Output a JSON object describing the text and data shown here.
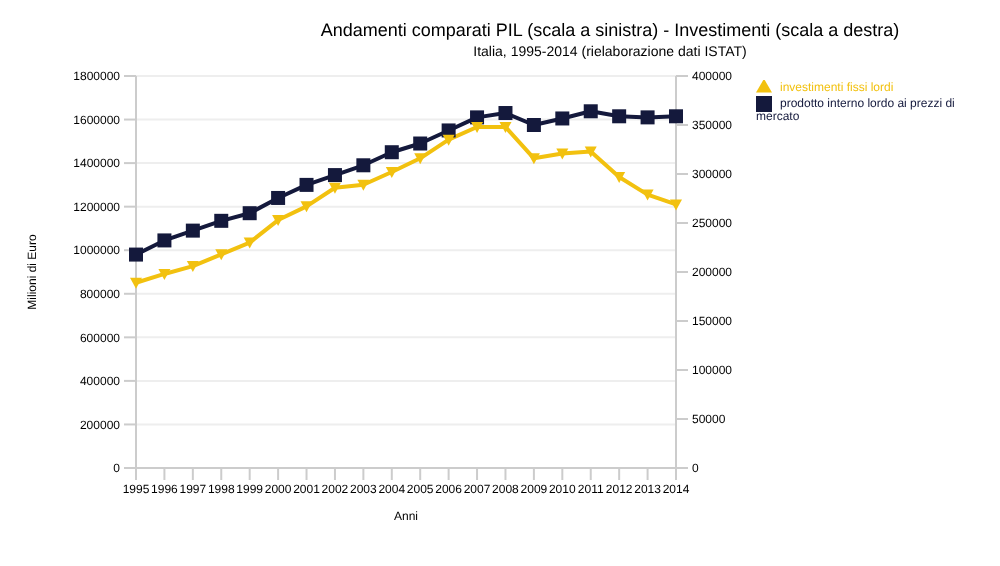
{
  "chart_data": {
    "type": "line",
    "title": "Andamenti comparati PIL (scala a sinistra) - Investimenti (scala a destra)",
    "subtitle": "Italia, 1995-2014 (rielaborazione dati ISTAT)",
    "xlabel": "Anni",
    "ylabel": "Milioni di Euro",
    "categories": [
      "1995",
      "1996",
      "1997",
      "1998",
      "1999",
      "2000",
      "2001",
      "2002",
      "2003",
      "2004",
      "2005",
      "2006",
      "2007",
      "2008",
      "2009",
      "2010",
      "2011",
      "2012",
      "2013",
      "2014"
    ],
    "series": [
      {
        "name": "prodotto interno lordo ai prezzi di mercato",
        "color": "#14193c",
        "marker": "square",
        "values": [
          980000,
          1045000,
          1090000,
          1135000,
          1170000,
          1240000,
          1300000,
          1345000,
          1390000,
          1450000,
          1490000,
          1550000,
          1610000,
          1630000,
          1575000,
          1605000,
          1638000,
          1615000,
          1610000,
          1615000
        ]
      },
      {
        "name": "investimenti fissi lordi",
        "color": "#f2c10f",
        "marker": "triangle",
        "axis": "y2",
        "values": [
          189000,
          198000,
          206000,
          218000,
          230000,
          253000,
          267000,
          286000,
          289000,
          302000,
          316000,
          335000,
          348000,
          348000,
          316000,
          321000,
          323000,
          297000,
          279000,
          269000
        ]
      }
    ],
    "ylim": [
      0,
      1800000
    ],
    "yticks": [
      0,
      200000,
      400000,
      600000,
      800000,
      1000000,
      1200000,
      1400000,
      1600000,
      1800000
    ],
    "y2lim": [
      0,
      400000
    ],
    "y2ticks": [
      0,
      50000,
      100000,
      150000,
      200000,
      250000,
      300000,
      350000,
      400000
    ],
    "grid": "y",
    "legend": "right"
  }
}
